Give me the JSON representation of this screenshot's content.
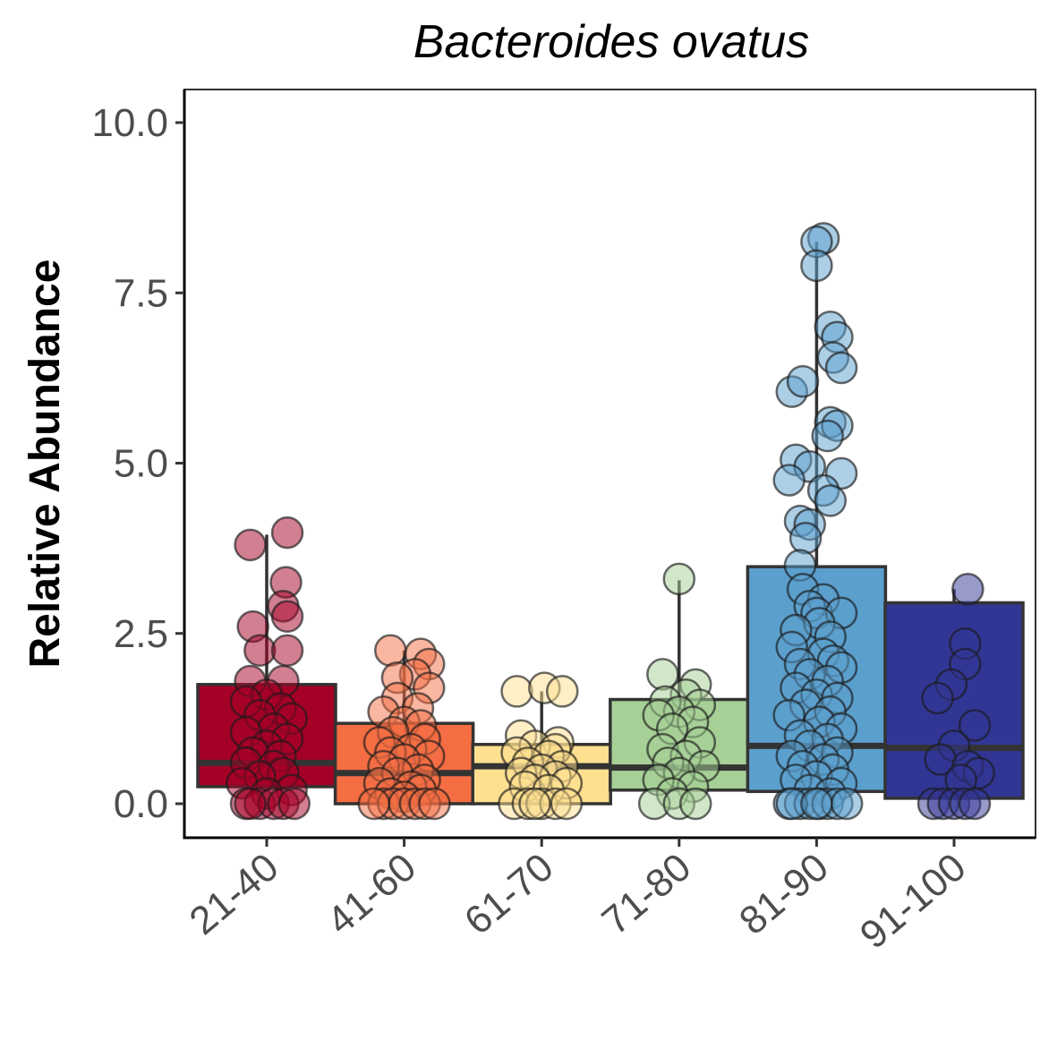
{
  "chart_data": {
    "type": "box",
    "title": "Bacteroides ovatus",
    "xlabel": "",
    "ylabel": "Relative Abundance",
    "ylim": [
      -0.5,
      10.5
    ],
    "yticks": [
      "0.0",
      "2.5",
      "5.0",
      "7.5",
      "10.0"
    ],
    "ytick_values": [
      0,
      2.5,
      5,
      7.5,
      10
    ],
    "categories": [
      "21-40",
      "41-60",
      "61-70",
      "71-80",
      "81-90",
      "91-100"
    ],
    "colors": [
      "#a50026",
      "#f46d43",
      "#fee090",
      "#a6d096",
      "#5b9fcd",
      "#313695"
    ],
    "boxes": [
      {
        "q1": 0.25,
        "median": 0.6,
        "q3": 1.75,
        "whisker_low": 0,
        "whisker_high": 3.95
      },
      {
        "q1": 0.0,
        "median": 0.45,
        "q3": 1.18,
        "whisker_low": 0,
        "whisker_high": 2.25
      },
      {
        "q1": 0.0,
        "median": 0.55,
        "q3": 0.87,
        "whisker_low": 0,
        "whisker_high": 1.65
      },
      {
        "q1": 0.2,
        "median": 0.53,
        "q3": 1.53,
        "whisker_low": 0,
        "whisker_high": 3.28
      },
      {
        "q1": 0.18,
        "median": 0.85,
        "q3": 3.48,
        "whisker_low": 0,
        "whisker_high": 8.25
      },
      {
        "q1": 0.08,
        "median": 0.82,
        "q3": 2.95,
        "whisker_low": 0,
        "whisker_high": 3.15
      }
    ],
    "points": [
      [
        [
          -0.12,
          3.8
        ],
        [
          0.15,
          3.98
        ],
        [
          -0.1,
          2.6
        ],
        [
          0.14,
          3.25
        ],
        [
          0.12,
          2.9
        ],
        [
          0.15,
          2.75
        ],
        [
          -0.05,
          2.25
        ],
        [
          0.15,
          2.25
        ],
        [
          0.12,
          1.8
        ],
        [
          -0.12,
          1.8
        ],
        [
          0.0,
          1.6
        ],
        [
          -0.15,
          1.5
        ],
        [
          0.1,
          1.4
        ],
        [
          0.18,
          1.25
        ],
        [
          -0.05,
          1.3
        ],
        [
          0.05,
          1.1
        ],
        [
          -0.15,
          1.05
        ],
        [
          0.15,
          0.95
        ],
        [
          0.0,
          0.85
        ],
        [
          -0.1,
          0.75
        ],
        [
          0.1,
          0.7
        ],
        [
          -0.15,
          0.6
        ],
        [
          0.05,
          0.55
        ],
        [
          0.12,
          0.45
        ],
        [
          -0.05,
          0.4
        ],
        [
          -0.18,
          0.3
        ],
        [
          0.18,
          0.2
        ],
        [
          0.0,
          0.15
        ],
        [
          -0.15,
          0.0
        ],
        [
          -0.05,
          0.0
        ],
        [
          0.05,
          0.0
        ],
        [
          0.12,
          0.0
        ],
        [
          0.2,
          0.0
        ],
        [
          -0.12,
          0.0
        ]
      ],
      [
        [
          -0.1,
          2.25
        ],
        [
          0.12,
          2.2
        ],
        [
          0.18,
          2.05
        ],
        [
          0.08,
          1.9
        ],
        [
          -0.05,
          1.85
        ],
        [
          0.18,
          1.7
        ],
        [
          -0.05,
          1.55
        ],
        [
          0.1,
          1.4
        ],
        [
          -0.15,
          1.35
        ],
        [
          0.0,
          1.2
        ],
        [
          0.12,
          1.15
        ],
        [
          -0.08,
          1.05
        ],
        [
          0.15,
          0.95
        ],
        [
          -0.18,
          0.9
        ],
        [
          0.05,
          0.8
        ],
        [
          -0.1,
          0.75
        ],
        [
          0.18,
          0.7
        ],
        [
          0.0,
          0.65
        ],
        [
          -0.15,
          0.55
        ],
        [
          0.1,
          0.5
        ],
        [
          -0.05,
          0.45
        ],
        [
          0.15,
          0.35
        ],
        [
          -0.18,
          0.3
        ],
        [
          0.05,
          0.25
        ],
        [
          0.12,
          0.2
        ],
        [
          -0.1,
          0.15
        ],
        [
          0.0,
          0.1
        ],
        [
          -0.15,
          0.0
        ],
        [
          -0.08,
          0.0
        ],
        [
          0.0,
          0.0
        ],
        [
          0.08,
          0.0
        ],
        [
          0.15,
          0.0
        ],
        [
          0.22,
          0.0
        ],
        [
          -0.22,
          0.0
        ]
      ],
      [
        [
          -0.18,
          1.65
        ],
        [
          0.02,
          1.7
        ],
        [
          0.15,
          1.65
        ],
        [
          -0.15,
          1.0
        ],
        [
          0.12,
          0.9
        ],
        [
          -0.05,
          0.85
        ],
        [
          0.1,
          0.8
        ],
        [
          -0.18,
          0.75
        ],
        [
          0.05,
          0.7
        ],
        [
          -0.1,
          0.6
        ],
        [
          0.15,
          0.55
        ],
        [
          0.0,
          0.5
        ],
        [
          -0.15,
          0.45
        ],
        [
          0.1,
          0.4
        ],
        [
          -0.05,
          0.35
        ],
        [
          0.18,
          0.3
        ],
        [
          -0.12,
          0.25
        ],
        [
          0.05,
          0.2
        ],
        [
          -0.2,
          0.0
        ],
        [
          -0.1,
          0.0
        ],
        [
          0.0,
          0.0
        ],
        [
          0.1,
          0.0
        ],
        [
          0.18,
          0.0
        ],
        [
          -0.05,
          0.0
        ]
      ],
      [
        [
          0.0,
          3.3
        ],
        [
          -0.12,
          1.9
        ],
        [
          0.12,
          1.75
        ],
        [
          0.05,
          1.6
        ],
        [
          -0.1,
          1.5
        ],
        [
          0.15,
          1.45
        ],
        [
          0.0,
          1.35
        ],
        [
          -0.15,
          1.3
        ],
        [
          0.1,
          1.2
        ],
        [
          -0.05,
          1.1
        ],
        [
          0.15,
          0.9
        ],
        [
          -0.12,
          0.8
        ],
        [
          0.05,
          0.7
        ],
        [
          -0.08,
          0.6
        ],
        [
          0.18,
          0.55
        ],
        [
          0.0,
          0.45
        ],
        [
          -0.15,
          0.35
        ],
        [
          0.1,
          0.25
        ],
        [
          -0.05,
          0.15
        ],
        [
          -0.18,
          0.0
        ],
        [
          0.0,
          0.0
        ],
        [
          0.12,
          0.0
        ]
      ],
      [
        [
          0.05,
          8.3
        ],
        [
          0.0,
          8.25
        ],
        [
          0.0,
          7.9
        ],
        [
          0.1,
          7.0
        ],
        [
          0.15,
          6.85
        ],
        [
          0.12,
          6.55
        ],
        [
          0.18,
          6.4
        ],
        [
          -0.18,
          6.05
        ],
        [
          -0.1,
          6.2
        ],
        [
          0.1,
          5.6
        ],
        [
          0.15,
          5.55
        ],
        [
          0.08,
          5.4
        ],
        [
          -0.15,
          5.05
        ],
        [
          -0.05,
          4.95
        ],
        [
          0.18,
          4.85
        ],
        [
          -0.2,
          4.75
        ],
        [
          0.05,
          4.6
        ],
        [
          0.1,
          4.45
        ],
        [
          -0.12,
          4.15
        ],
        [
          -0.05,
          4.1
        ],
        [
          -0.08,
          3.9
        ],
        [
          -0.12,
          3.5
        ],
        [
          -0.1,
          3.15
        ],
        [
          0.05,
          3.0
        ],
        [
          -0.05,
          2.9
        ],
        [
          0.0,
          2.8
        ],
        [
          0.18,
          2.8
        ],
        [
          0.02,
          2.65
        ],
        [
          -0.15,
          2.55
        ],
        [
          0.1,
          2.45
        ],
        [
          -0.18,
          2.3
        ],
        [
          0.05,
          2.2
        ],
        [
          0.12,
          2.1
        ],
        [
          -0.12,
          2.05
        ],
        [
          0.18,
          2.0
        ],
        [
          -0.05,
          1.9
        ],
        [
          0.08,
          1.8
        ],
        [
          -0.15,
          1.7
        ],
        [
          0.0,
          1.6
        ],
        [
          0.15,
          1.55
        ],
        [
          -0.08,
          1.45
        ],
        [
          0.1,
          1.35
        ],
        [
          -0.2,
          1.3
        ],
        [
          0.02,
          1.2
        ],
        [
          0.18,
          1.1
        ],
        [
          -0.12,
          1.0
        ],
        [
          0.08,
          0.95
        ],
        [
          -0.05,
          0.85
        ],
        [
          0.15,
          0.75
        ],
        [
          -0.18,
          0.7
        ],
        [
          0.05,
          0.65
        ],
        [
          -0.1,
          0.55
        ],
        [
          0.12,
          0.5
        ],
        [
          0.0,
          0.4
        ],
        [
          -0.15,
          0.35
        ],
        [
          0.18,
          0.3
        ],
        [
          -0.05,
          0.2
        ],
        [
          0.1,
          0.15
        ],
        [
          -0.2,
          0.0
        ],
        [
          -0.12,
          0.0
        ],
        [
          -0.05,
          0.0
        ],
        [
          0.02,
          0.0
        ],
        [
          0.08,
          0.0
        ],
        [
          0.15,
          0.0
        ],
        [
          0.22,
          0.0
        ],
        [
          -0.18,
          0.0
        ],
        [
          0.0,
          0.0
        ]
      ],
      [
        [
          0.1,
          3.15
        ],
        [
          0.08,
          2.35
        ],
        [
          0.08,
          2.05
        ],
        [
          -0.02,
          1.75
        ],
        [
          -0.12,
          1.55
        ],
        [
          0.15,
          1.15
        ],
        [
          0.0,
          0.85
        ],
        [
          -0.1,
          0.65
        ],
        [
          0.1,
          0.55
        ],
        [
          0.18,
          0.45
        ],
        [
          0.05,
          0.35
        ],
        [
          -0.15,
          0.0
        ],
        [
          -0.08,
          0.0
        ],
        [
          0.0,
          0.0
        ],
        [
          0.08,
          0.0
        ],
        [
          0.15,
          0.0
        ]
      ]
    ]
  }
}
